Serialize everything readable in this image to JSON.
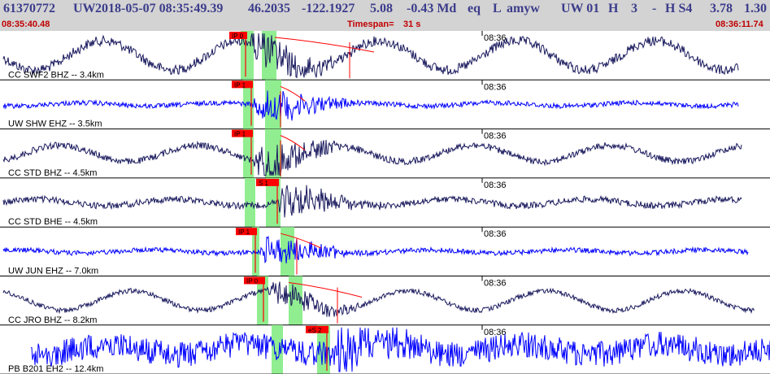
{
  "header": {
    "event_id": "61370772",
    "network": "UW",
    "datetime": "2018-05-07 08:35:49.39",
    "lat": "46.2035",
    "lon": "-122.1927",
    "depth": "5.08",
    "magnitude": "-0.43 Md",
    "event_type": "eq",
    "flag": "L",
    "source": "amyw",
    "net_code": "UW 01",
    "quality": "H",
    "count": "3",
    "dash": "-",
    "s_code": "H S4",
    "v1": "3.78",
    "v2": "1.30"
  },
  "subheader": {
    "start_time": "08:35:40.48",
    "timespan_label": "Timespan=",
    "timespan_value": "31 s",
    "end_time": "08:36:11.74"
  },
  "chart_data": {
    "type": "line",
    "x_unit": "time",
    "time_range": [
      "08:35:40.48",
      "08:36:11.74"
    ],
    "time_tick_label": "08:36",
    "colors": {
      "dark_trace": "#1a1a5e",
      "blue_trace": "#0000ff",
      "pick": "#ff0000",
      "window": "#90ee90"
    },
    "traces": [
      {
        "label": "CC SWF2 BHZ -- 3.4km",
        "color": "#1a1a5e",
        "pick_label": "IP 0",
        "kind": "dark"
      },
      {
        "label": "UW SHW EHZ -- 3.5km",
        "color": "#0000ff",
        "pick_label": "IP 1",
        "kind": "blue"
      },
      {
        "label": "CC STD BHZ -- 4.5km",
        "color": "#1a1a5e",
        "pick_label": "IP 1",
        "kind": "dark"
      },
      {
        "label": "CC STD BHE -- 4.5km",
        "color": "#1a1a5e",
        "pick_label": "S 1",
        "kind": "dark"
      },
      {
        "label": "UW JUN EHZ -- 7.0km",
        "color": "#0000ff",
        "pick_label": "IP 1",
        "kind": "blue"
      },
      {
        "label": "CC JRO BHZ -- 8.2km",
        "color": "#1a1a5e",
        "pick_label": "IP 0",
        "kind": "dark"
      },
      {
        "label": "PB B201 EH2 -- 12.4km",
        "color": "#0000ff",
        "pick_label": "eS 2",
        "kind": "blue"
      }
    ]
  }
}
